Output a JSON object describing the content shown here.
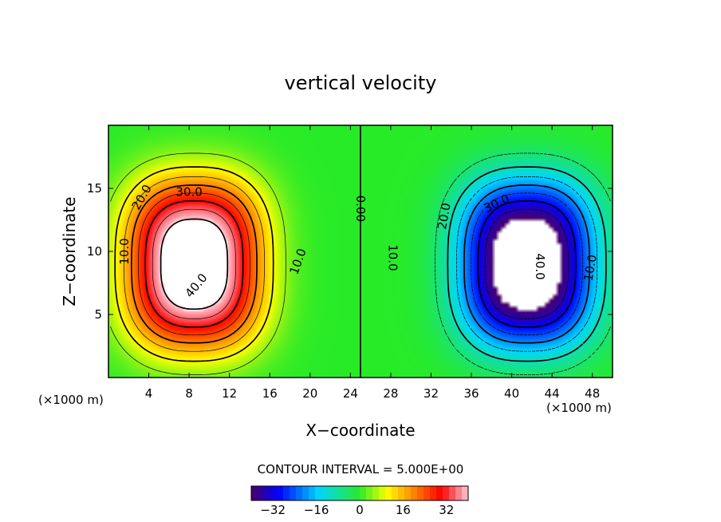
{
  "chart_data": {
    "type": "heatmap",
    "title": "vertical velocity",
    "xlabel": "X−coordinate",
    "ylabel": "Z−coordinate",
    "x_unit_left": "(×1000 m)",
    "x_unit_right": "(×1000 m)",
    "xlim": [
      0,
      50
    ],
    "ylim": [
      0,
      20
    ],
    "x_ticks": [
      4,
      8,
      12,
      16,
      20,
      24,
      28,
      32,
      36,
      40,
      44,
      48
    ],
    "y_ticks": [
      5,
      10,
      15
    ],
    "contour_interval_text": "CONTOUR INTERVAL = 5.000E+00",
    "colorbar": {
      "range": [
        -40,
        40
      ],
      "ticks": [
        -32,
        -16,
        0,
        16,
        32
      ]
    },
    "fields": [
      {
        "name": "updraft",
        "center": [
          8.5,
          9.0
        ],
        "peak": 48,
        "rx": 7.5,
        "rz": 7.0
      },
      {
        "name": "downdraft",
        "center": [
          41.5,
          9.0
        ],
        "peak": -48,
        "rx": 7.5,
        "rz": 7.0
      }
    ],
    "contour_labels": [
      {
        "text": "10.0",
        "x": 1.6,
        "z": 10.0,
        "rot": -90
      },
      {
        "text": "20.0",
        "x": 3.3,
        "z": 14.3,
        "rot": -60
      },
      {
        "text": "30.0",
        "x": 8.0,
        "z": 14.7,
        "rot": 0
      },
      {
        "text": "40.0",
        "x": 8.7,
        "z": 7.3,
        "rot": -50
      },
      {
        "text": "10.0",
        "x": 18.8,
        "z": 9.2,
        "rot": -70
      },
      {
        "text": "0.00",
        "x": 25.0,
        "z": 13.4,
        "rot": 90
      },
      {
        "text": "10.0",
        "x": 28.2,
        "z": 9.5,
        "rot": 90
      },
      {
        "text": "20.0",
        "x": 33.3,
        "z": 12.8,
        "rot": -80
      },
      {
        "text": "30.0",
        "x": 38.5,
        "z": 13.8,
        "rot": -25
      },
      {
        "text": "40.0",
        "x": 42.8,
        "z": 8.8,
        "rot": 90
      },
      {
        "text": "10.0",
        "x": 47.8,
        "z": 8.7,
        "rot": -80
      }
    ]
  }
}
